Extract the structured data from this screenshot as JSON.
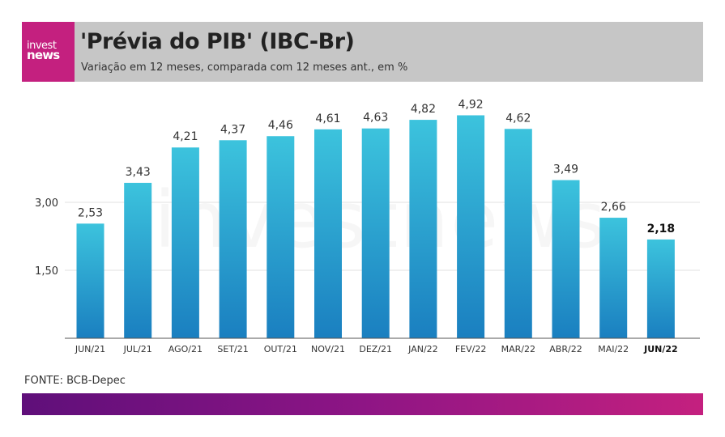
{
  "header": {
    "logo_line1": "invest",
    "logo_line2": "news",
    "title": "'Prévia do PIB' (IBC-Br)",
    "subtitle": "Variação em 12 meses, comparada com 12 meses ant., em %"
  },
  "footer": {
    "source": "FONTE: BCB-Depec"
  },
  "colors": {
    "header_bg": "#c6c6c6",
    "brand_magenta": "#c4207f",
    "brand_purple": "#5f0f7a",
    "bar_top": "#3cc3dd",
    "bar_bottom": "#1a7fc0"
  },
  "chart_data": {
    "type": "bar",
    "categories": [
      "JUN/21",
      "JUL/21",
      "AGO/21",
      "SET/21",
      "OUT/21",
      "NOV/21",
      "DEZ/21",
      "JAN/22",
      "FEV/22",
      "MAR/22",
      "ABR/22",
      "MAI/22",
      "JUN/22"
    ],
    "values": [
      2.53,
      3.43,
      4.21,
      4.37,
      4.46,
      4.61,
      4.63,
      4.82,
      4.92,
      4.62,
      3.49,
      2.66,
      2.18
    ],
    "value_labels": [
      "2,53",
      "3,43",
      "4,21",
      "4,37",
      "4,46",
      "4,61",
      "4,63",
      "4,82",
      "4,92",
      "4,62",
      "3,49",
      "2,66",
      "2,18"
    ],
    "highlight_index": 12,
    "yticks": [
      1.5,
      3.0
    ],
    "ytick_labels": [
      "1,50",
      "3,00"
    ],
    "ylim": [
      0,
      5.2
    ],
    "grid": true,
    "watermark": "investnews",
    "title": "",
    "xlabel": "",
    "ylabel": ""
  }
}
